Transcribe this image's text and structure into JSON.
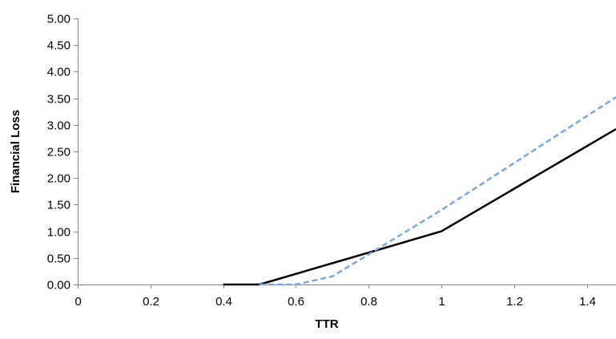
{
  "chart_data": {
    "type": "line",
    "title": "",
    "xlabel": "TTR",
    "ylabel": "Financial Loss",
    "xlim": [
      0,
      1.48
    ],
    "ylim": [
      0,
      5
    ],
    "x_ticks": [
      "0",
      "0.2",
      "0.4",
      "0.6",
      "0.8",
      "1",
      "1.2",
      "1.4"
    ],
    "y_ticks": [
      "0.00",
      "0.50",
      "1.00",
      "1.50",
      "2.00",
      "2.50",
      "3.00",
      "3.50",
      "4.00",
      "4.50",
      "5.00"
    ],
    "grid": false,
    "legend": "none",
    "series": [
      {
        "style": "solid",
        "color": "#000000",
        "x": [
          0.4,
          0.5,
          1.0,
          1.48
        ],
        "y": [
          0.0,
          0.0,
          1.0,
          2.92
        ]
      },
      {
        "style": "dashed",
        "color": "#7ba7d9",
        "x": [
          0.5,
          0.6,
          0.7,
          1.0,
          1.48
        ],
        "y": [
          0.0,
          0.0,
          0.15,
          1.4,
          3.52
        ]
      }
    ]
  }
}
